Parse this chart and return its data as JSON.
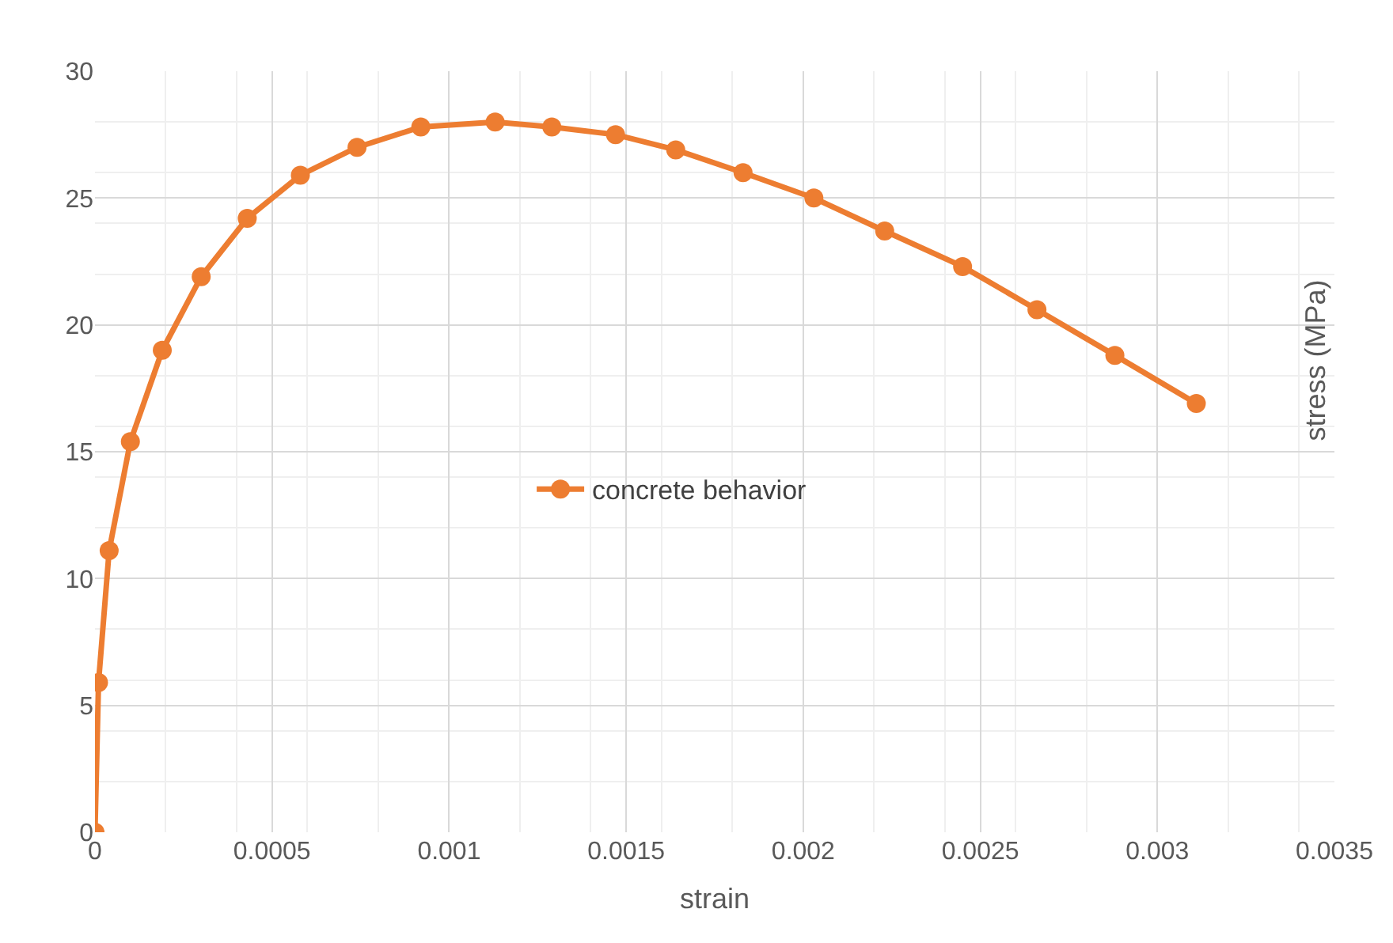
{
  "chart_data": {
    "type": "line",
    "xlabel": "strain",
    "ylabel": "stress (MPa)",
    "x": [
      0,
      1e-05,
      4e-05,
      0.0001,
      0.00019,
      0.0003,
      0.00043,
      0.00058,
      0.00074,
      0.00092,
      0.00113,
      0.00129,
      0.00147,
      0.00164,
      0.00183,
      0.00203,
      0.00223,
      0.00245,
      0.00266,
      0.00288,
      0.00311
    ],
    "series": [
      {
        "name": "concrete behavior",
        "color": "#ed7d31",
        "values": [
          0,
          5.9,
          11.1,
          15.4,
          19.0,
          21.9,
          24.2,
          25.9,
          27.0,
          27.8,
          28.0,
          27.8,
          27.5,
          26.9,
          26.0,
          25.0,
          23.7,
          22.3,
          20.6,
          18.8,
          16.9
        ]
      }
    ],
    "xlim": [
      0,
      0.0035
    ],
    "xticks": [
      0,
      0.0005,
      0.001,
      0.0015,
      0.002,
      0.0025,
      0.003,
      0.0035
    ],
    "ylim": [
      0,
      30
    ],
    "yticks": [
      0,
      5,
      10,
      15,
      20,
      25,
      30
    ],
    "grid": true,
    "legend": "center",
    "marker": "circle",
    "line_style": "solid"
  }
}
